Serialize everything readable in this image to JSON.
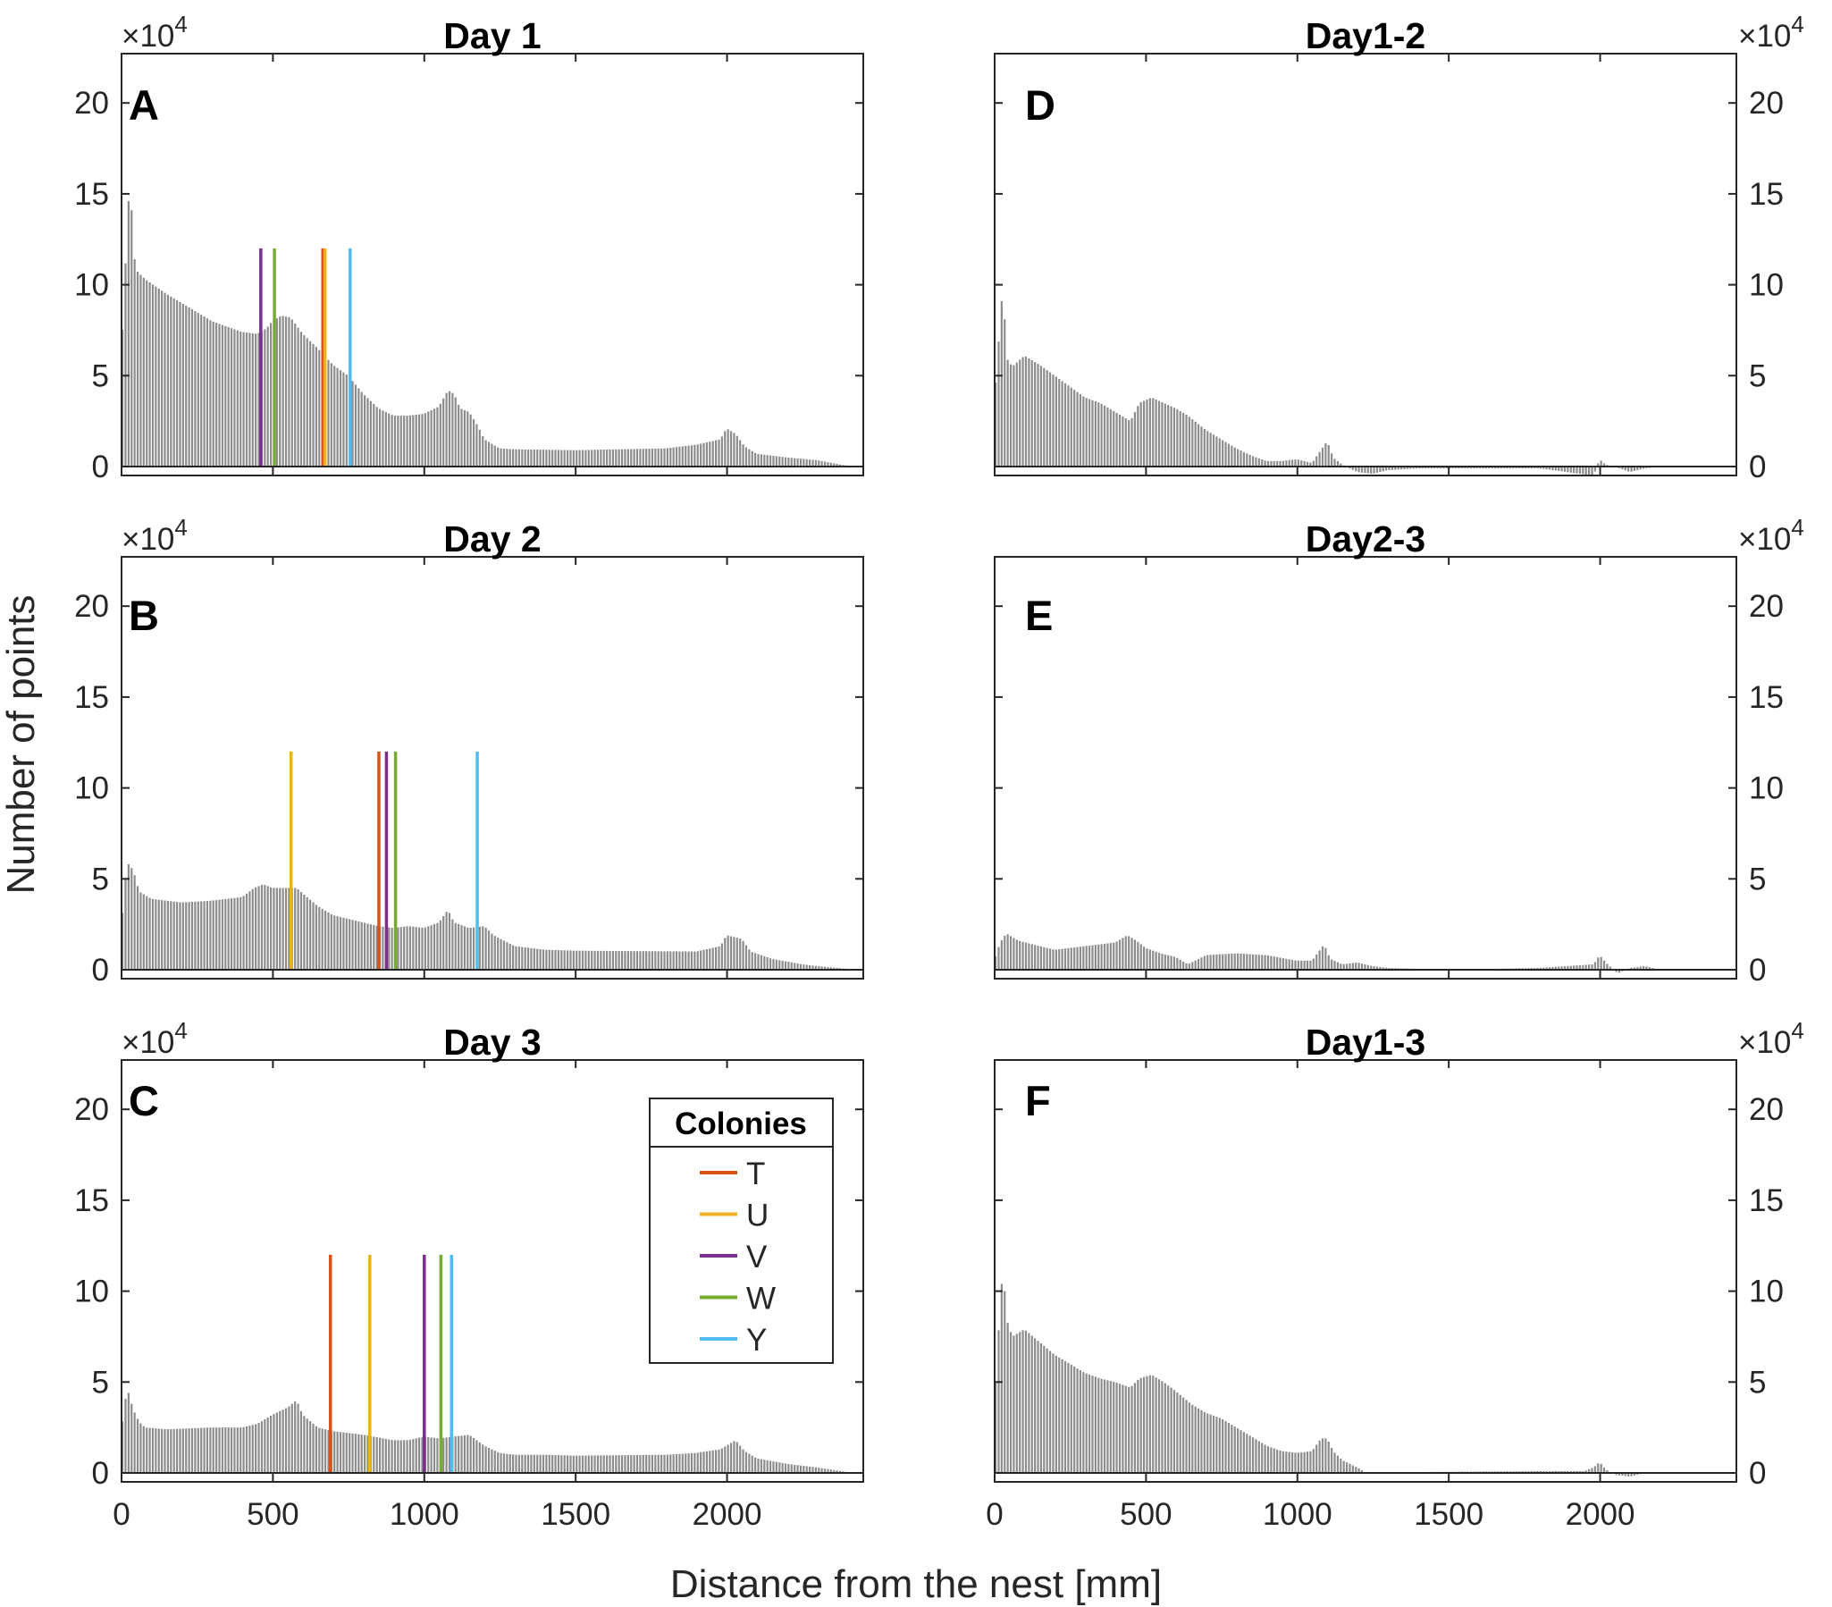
{
  "figure": {
    "xlabel": "Distance from the nest [mm]",
    "ylabel": "Number of points",
    "y_multiplier": {
      "base": "×10",
      "exponent": "4"
    },
    "legend": {
      "title": "Colonies",
      "entries": [
        {
          "label": "T",
          "color": "#D95319"
        },
        {
          "label": "U",
          "color": "#EDB120"
        },
        {
          "label": "V",
          "color": "#7E2F8E"
        },
        {
          "label": "W",
          "color": "#77AC30"
        },
        {
          "label": "Y",
          "color": "#4DBEEE"
        }
      ]
    }
  },
  "chart_data": [
    {
      "type": "bar",
      "id": "A",
      "letter": "A",
      "title": "Day 1",
      "xlim": [
        0,
        2450
      ],
      "ylim": [
        0,
        20
      ],
      "y_unit": "x10^4",
      "bin_width": 10,
      "x_ticks": [
        "0",
        "500",
        "1000",
        "1500",
        "2000"
      ],
      "y_ticks": [
        "0",
        "5",
        "10",
        "15",
        "20"
      ],
      "grid": false,
      "y_axis_side": "left",
      "profile": [
        [
          0,
          5.7
        ],
        [
          20,
          13
        ],
        [
          30,
          16.2
        ],
        [
          40,
          12
        ],
        [
          50,
          10.8
        ],
        [
          80,
          10.3
        ],
        [
          150,
          9.5
        ],
        [
          200,
          9
        ],
        [
          250,
          8.5
        ],
        [
          300,
          8
        ],
        [
          350,
          7.7
        ],
        [
          400,
          7.4
        ],
        [
          450,
          7.3
        ],
        [
          480,
          7.6
        ],
        [
          500,
          8
        ],
        [
          530,
          8.3
        ],
        [
          560,
          8.2
        ],
        [
          600,
          7.3
        ],
        [
          650,
          6.5
        ],
        [
          700,
          5.6
        ],
        [
          750,
          5
        ],
        [
          800,
          4
        ],
        [
          850,
          3.2
        ],
        [
          900,
          2.8
        ],
        [
          950,
          2.8
        ],
        [
          1000,
          2.9
        ],
        [
          1050,
          3.3
        ],
        [
          1080,
          4.2
        ],
        [
          1100,
          4
        ],
        [
          1120,
          3.2
        ],
        [
          1150,
          3
        ],
        [
          1180,
          2.2
        ],
        [
          1200,
          1.5
        ],
        [
          1250,
          1
        ],
        [
          1300,
          0.95
        ],
        [
          1500,
          0.9
        ],
        [
          1800,
          1
        ],
        [
          1900,
          1.2
        ],
        [
          1980,
          1.5
        ],
        [
          2000,
          2.1
        ],
        [
          2030,
          1.8
        ],
        [
          2060,
          1.1
        ],
        [
          2100,
          0.7
        ],
        [
          2200,
          0.5
        ],
        [
          2300,
          0.35
        ],
        [
          2380,
          0.1
        ],
        [
          2400,
          0.05
        ]
      ],
      "markers": [
        {
          "colony": "V",
          "x": 460,
          "height": 12
        },
        {
          "colony": "W",
          "x": 505,
          "height": 12
        },
        {
          "colony": "T",
          "x": 665,
          "height": 12
        },
        {
          "colony": "U",
          "x": 672,
          "height": 12
        },
        {
          "colony": "Y",
          "x": 755,
          "height": 12
        }
      ]
    },
    {
      "type": "bar",
      "id": "B",
      "letter": "B",
      "title": "Day 2",
      "xlim": [
        0,
        2450
      ],
      "ylim": [
        0,
        20
      ],
      "y_unit": "x10^4",
      "bin_width": 10,
      "x_ticks": [
        "0",
        "500",
        "1000",
        "1500",
        "2000"
      ],
      "y_ticks": [
        "0",
        "5",
        "10",
        "15",
        "20"
      ],
      "grid": false,
      "y_axis_side": "left",
      "profile": [
        [
          0,
          2.2
        ],
        [
          20,
          5.9
        ],
        [
          40,
          5.5
        ],
        [
          60,
          4.3
        ],
        [
          100,
          3.9
        ],
        [
          200,
          3.7
        ],
        [
          300,
          3.8
        ],
        [
          400,
          4
        ],
        [
          440,
          4.5
        ],
        [
          470,
          4.7
        ],
        [
          500,
          4.5
        ],
        [
          550,
          4.5
        ],
        [
          580,
          4.5
        ],
        [
          600,
          4.2
        ],
        [
          650,
          3.5
        ],
        [
          700,
          3
        ],
        [
          800,
          2.6
        ],
        [
          850,
          2.4
        ],
        [
          900,
          2.3
        ],
        [
          950,
          2.4
        ],
        [
          1000,
          2.3
        ],
        [
          1050,
          2.6
        ],
        [
          1080,
          3.3
        ],
        [
          1100,
          2.6
        ],
        [
          1150,
          2.3
        ],
        [
          1200,
          2.4
        ],
        [
          1230,
          1.9
        ],
        [
          1300,
          1.3
        ],
        [
          1400,
          1.1
        ],
        [
          1500,
          1.05
        ],
        [
          1900,
          1
        ],
        [
          1980,
          1.3
        ],
        [
          2000,
          1.9
        ],
        [
          2050,
          1.7
        ],
        [
          2080,
          1
        ],
        [
          2150,
          0.6
        ],
        [
          2250,
          0.3
        ],
        [
          2300,
          0.2
        ],
        [
          2400,
          0.05
        ]
      ],
      "markers": [
        {
          "colony": "U",
          "x": 560,
          "height": 12
        },
        {
          "colony": "T",
          "x": 850,
          "height": 12
        },
        {
          "colony": "V",
          "x": 875,
          "height": 12
        },
        {
          "colony": "W",
          "x": 905,
          "height": 12
        },
        {
          "colony": "Y",
          "x": 1175,
          "height": 12
        }
      ]
    },
    {
      "type": "bar",
      "id": "C",
      "letter": "C",
      "title": "Day 3",
      "xlim": [
        0,
        2450
      ],
      "ylim": [
        0,
        20
      ],
      "y_unit": "x10^4",
      "bin_width": 10,
      "x_ticks": [
        "0",
        "500",
        "1000",
        "1500",
        "2000"
      ],
      "y_ticks": [
        "0",
        "5",
        "10",
        "15",
        "20"
      ],
      "grid": false,
      "y_axis_side": "left",
      "profile": [
        [
          0,
          2.2
        ],
        [
          20,
          4.7
        ],
        [
          40,
          3.5
        ],
        [
          60,
          2.8
        ],
        [
          80,
          2.5
        ],
        [
          150,
          2.4
        ],
        [
          300,
          2.5
        ],
        [
          400,
          2.5
        ],
        [
          450,
          2.7
        ],
        [
          500,
          3.2
        ],
        [
          550,
          3.6
        ],
        [
          580,
          4
        ],
        [
          600,
          3.2
        ],
        [
          650,
          2.5
        ],
        [
          700,
          2.3
        ],
        [
          800,
          2.1
        ],
        [
          900,
          1.8
        ],
        [
          950,
          1.8
        ],
        [
          1000,
          2
        ],
        [
          1050,
          1.9
        ],
        [
          1100,
          2
        ],
        [
          1150,
          2.1
        ],
        [
          1200,
          1.5
        ],
        [
          1250,
          1.1
        ],
        [
          1300,
          1
        ],
        [
          1400,
          1
        ],
        [
          1500,
          0.95
        ],
        [
          1800,
          1
        ],
        [
          1900,
          1.1
        ],
        [
          1980,
          1.3
        ],
        [
          2000,
          1.5
        ],
        [
          2030,
          1.8
        ],
        [
          2060,
          1.2
        ],
        [
          2100,
          0.8
        ],
        [
          2200,
          0.5
        ],
        [
          2300,
          0.3
        ],
        [
          2400,
          0.05
        ]
      ],
      "markers": [
        {
          "colony": "T",
          "x": 690,
          "height": 12
        },
        {
          "colony": "U",
          "x": 820,
          "height": 12
        },
        {
          "colony": "V",
          "x": 1000,
          "height": 12
        },
        {
          "colony": "W",
          "x": 1055,
          "height": 12
        },
        {
          "colony": "Y",
          "x": 1090,
          "height": 12
        }
      ]
    },
    {
      "type": "bar",
      "id": "D",
      "letter": "D",
      "title": "Day1-2",
      "xlim": [
        0,
        2450
      ],
      "ylim": [
        0,
        20
      ],
      "y_unit": "x10^4",
      "bin_width": 10,
      "x_ticks": [
        "0",
        "500",
        "1000",
        "1500",
        "2000"
      ],
      "y_ticks": [
        "0",
        "5",
        "10",
        "15",
        "20"
      ],
      "grid": false,
      "y_axis_side": "right",
      "profile": [
        [
          0,
          3.5
        ],
        [
          20,
          8
        ],
        [
          30,
          10.2
        ],
        [
          40,
          6
        ],
        [
          60,
          5.5
        ],
        [
          100,
          6.1
        ],
        [
          150,
          5.6
        ],
        [
          200,
          5
        ],
        [
          250,
          4.4
        ],
        [
          300,
          3.8
        ],
        [
          350,
          3.5
        ],
        [
          400,
          3
        ],
        [
          450,
          2.5
        ],
        [
          480,
          3.5
        ],
        [
          520,
          3.8
        ],
        [
          560,
          3.5
        ],
        [
          600,
          3.2
        ],
        [
          640,
          2.8
        ],
        [
          700,
          2
        ],
        [
          750,
          1.5
        ],
        [
          800,
          1
        ],
        [
          850,
          0.6
        ],
        [
          900,
          0.3
        ],
        [
          950,
          0.3
        ],
        [
          1000,
          0.4
        ],
        [
          1050,
          0.2
        ],
        [
          1100,
          1.4
        ],
        [
          1120,
          0.5
        ],
        [
          1150,
          0.1
        ],
        [
          1200,
          -0.3
        ],
        [
          1250,
          -0.4
        ],
        [
          1300,
          -0.2
        ],
        [
          1400,
          -0.1
        ],
        [
          1800,
          -0.1
        ],
        [
          1980,
          -0.5
        ],
        [
          2000,
          0.4
        ],
        [
          2020,
          0.1
        ],
        [
          2050,
          0
        ],
        [
          2100,
          -0.3
        ],
        [
          2150,
          -0.1
        ],
        [
          2200,
          0
        ],
        [
          2400,
          0
        ]
      ],
      "markers": []
    },
    {
      "type": "bar",
      "id": "E",
      "letter": "E",
      "title": "Day2-3",
      "xlim": [
        0,
        2450
      ],
      "ylim": [
        0,
        20
      ],
      "y_unit": "x10^4",
      "bin_width": 10,
      "x_ticks": [
        "0",
        "500",
        "1000",
        "1500",
        "2000"
      ],
      "y_ticks": [
        "0",
        "5",
        "10",
        "15",
        "20"
      ],
      "grid": false,
      "y_axis_side": "right",
      "profile": [
        [
          0,
          0.5
        ],
        [
          20,
          1.5
        ],
        [
          40,
          2
        ],
        [
          80,
          1.6
        ],
        [
          150,
          1.3
        ],
        [
          200,
          1.1
        ],
        [
          300,
          1.3
        ],
        [
          400,
          1.5
        ],
        [
          440,
          1.9
        ],
        [
          470,
          1.6
        ],
        [
          500,
          1.2
        ],
        [
          550,
          0.9
        ],
        [
          600,
          0.7
        ],
        [
          640,
          0.3
        ],
        [
          700,
          0.8
        ],
        [
          800,
          0.9
        ],
        [
          900,
          0.8
        ],
        [
          1000,
          0.5
        ],
        [
          1050,
          0.5
        ],
        [
          1090,
          1.4
        ],
        [
          1110,
          0.6
        ],
        [
          1150,
          0.3
        ],
        [
          1200,
          0.4
        ],
        [
          1250,
          0.2
        ],
        [
          1300,
          0.1
        ],
        [
          1500,
          0
        ],
        [
          1800,
          0.1
        ],
        [
          1980,
          0.3
        ],
        [
          2000,
          0.8
        ],
        [
          2020,
          0.4
        ],
        [
          2060,
          -0.2
        ],
        [
          2100,
          0.1
        ],
        [
          2150,
          0.2
        ],
        [
          2200,
          0
        ],
        [
          2400,
          0
        ]
      ],
      "markers": []
    },
    {
      "type": "bar",
      "id": "F",
      "letter": "F",
      "title": "Day1-3",
      "xlim": [
        0,
        2450
      ],
      "ylim": [
        0,
        20
      ],
      "y_unit": "x10^4",
      "bin_width": 10,
      "x_ticks": [
        "0",
        "500",
        "1000",
        "1500",
        "2000"
      ],
      "y_ticks": [
        "0",
        "5",
        "10",
        "15",
        "20"
      ],
      "grid": false,
      "y_axis_side": "right",
      "profile": [
        [
          0,
          3.5
        ],
        [
          20,
          9.3
        ],
        [
          30,
          11.5
        ],
        [
          40,
          8.5
        ],
        [
          60,
          7.5
        ],
        [
          100,
          7.9
        ],
        [
          150,
          7.2
        ],
        [
          200,
          6.5
        ],
        [
          250,
          6
        ],
        [
          300,
          5.5
        ],
        [
          350,
          5.2
        ],
        [
          400,
          5
        ],
        [
          450,
          4.7
        ],
        [
          480,
          5.2
        ],
        [
          520,
          5.4
        ],
        [
          560,
          5
        ],
        [
          600,
          4.5
        ],
        [
          650,
          3.8
        ],
        [
          700,
          3.3
        ],
        [
          750,
          3
        ],
        [
          800,
          2.5
        ],
        [
          850,
          2
        ],
        [
          900,
          1.5
        ],
        [
          950,
          1.2
        ],
        [
          1000,
          1.1
        ],
        [
          1050,
          1.2
        ],
        [
          1080,
          1.9
        ],
        [
          1100,
          1.9
        ],
        [
          1120,
          1.2
        ],
        [
          1150,
          0.7
        ],
        [
          1200,
          0.3
        ],
        [
          1230,
          0
        ],
        [
          1400,
          0.05
        ],
        [
          1800,
          0.1
        ],
        [
          1950,
          0.1
        ],
        [
          1980,
          0.3
        ],
        [
          2000,
          0.6
        ],
        [
          2020,
          0.2
        ],
        [
          2050,
          -0.1
        ],
        [
          2100,
          -0.2
        ],
        [
          2150,
          0
        ],
        [
          2400,
          0
        ]
      ],
      "markers": []
    }
  ]
}
